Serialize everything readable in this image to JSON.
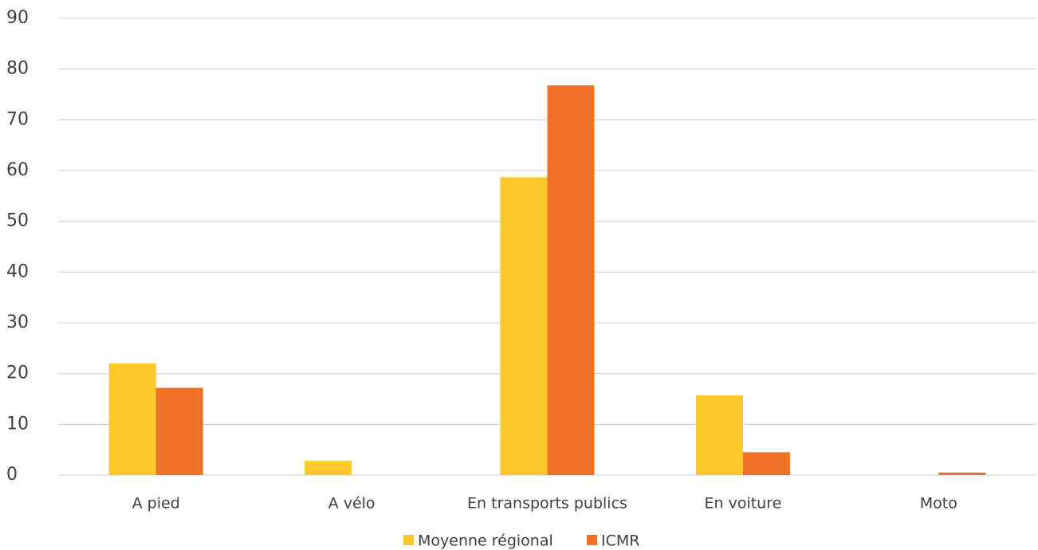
{
  "chart_data": {
    "type": "bar",
    "categories": [
      "A pied",
      "A vélo",
      "En transports publics",
      "En voiture",
      "Moto"
    ],
    "series": [
      {
        "name": "Moyenne régional",
        "color": "#fdc82b",
        "values": [
          22,
          2.8,
          58.7,
          15.7,
          0
        ]
      },
      {
        "name": "ICMR",
        "color": "#f07226",
        "values": [
          17.2,
          0,
          76.8,
          4.5,
          0.5
        ]
      }
    ],
    "ylim": [
      0,
      90
    ],
    "yticks": [
      0,
      10,
      20,
      30,
      40,
      50,
      60,
      70,
      80,
      90
    ],
    "grid": true,
    "legend": "bottom"
  }
}
